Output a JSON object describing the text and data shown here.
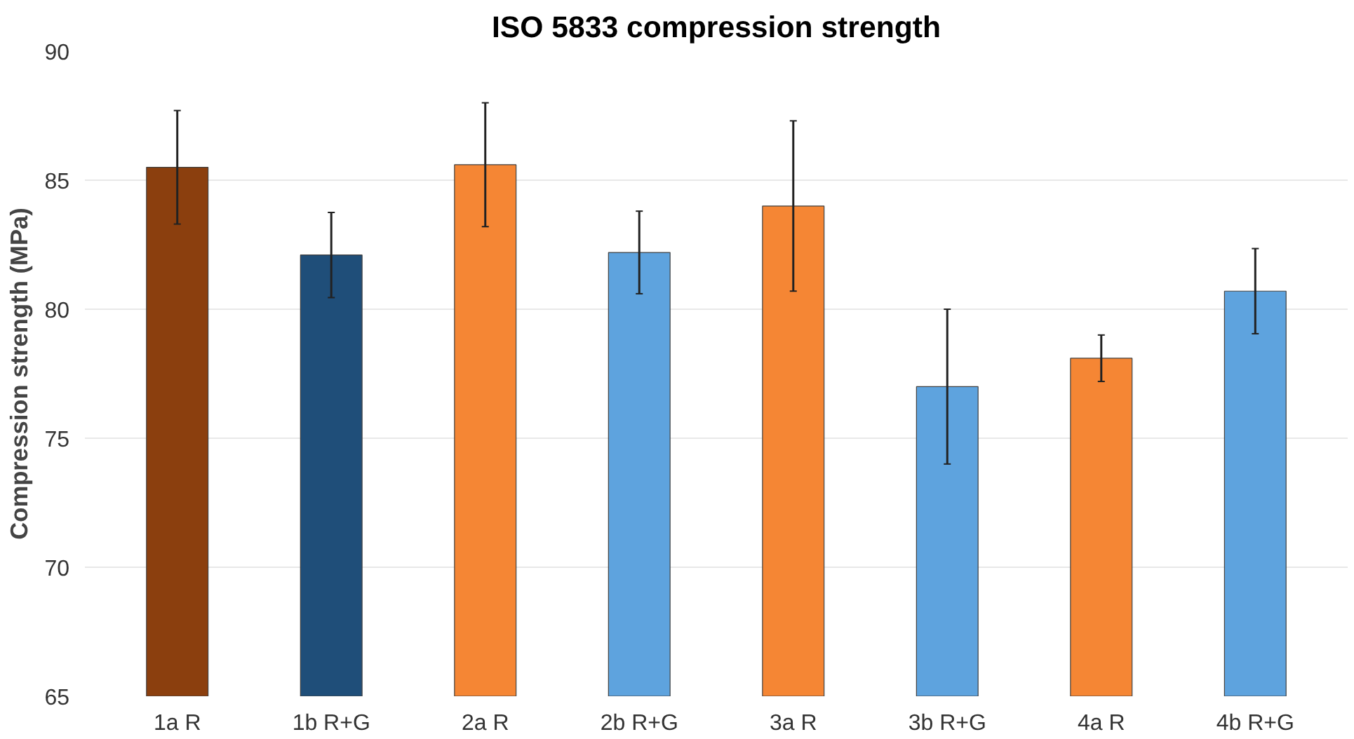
{
  "chart_data": {
    "type": "bar",
    "title": "ISO 5833 compression strength",
    "ylabel": "Compression strength (MPa)",
    "categories": [
      "1a R",
      "1b R+G",
      "2a R",
      "2b R+G",
      "3a R",
      "3b R+G",
      "4a R",
      "4b R+G"
    ],
    "values": [
      85.5,
      82.1,
      85.6,
      82.2,
      84.0,
      77.0,
      78.1,
      80.7
    ],
    "errors": [
      2.2,
      1.65,
      2.4,
      1.6,
      3.3,
      3.0,
      0.9,
      1.65
    ],
    "colors": [
      "#8b3f0e",
      "#1f4e79",
      "#f58634",
      "#5ea3de",
      "#f58634",
      "#5ea3de",
      "#f58634",
      "#5ea3de"
    ],
    "ylim": [
      65,
      90
    ],
    "yticks": [
      65,
      70,
      75,
      80,
      85,
      90
    ],
    "grid": "y"
  }
}
